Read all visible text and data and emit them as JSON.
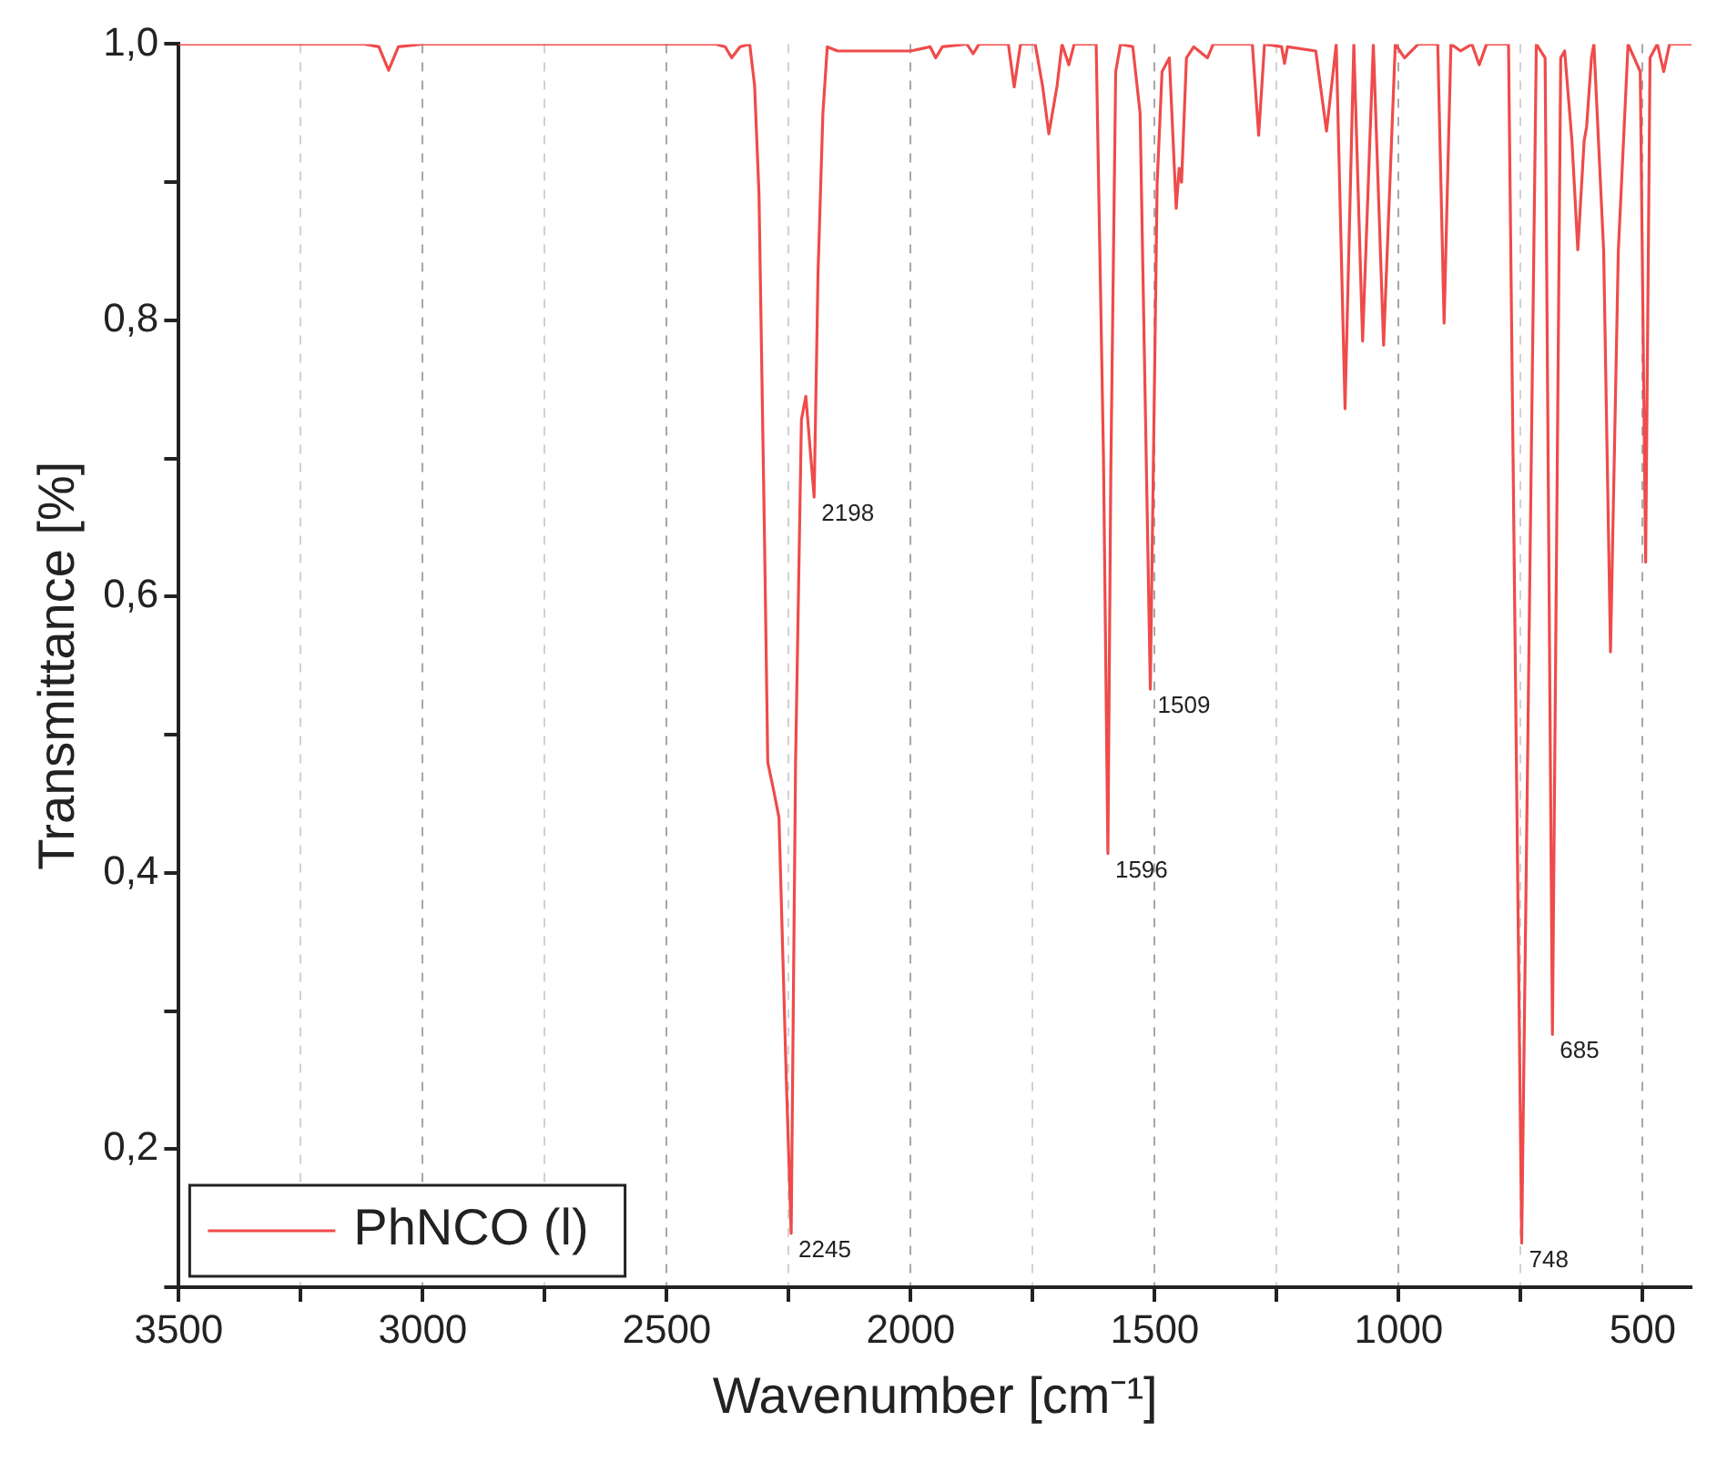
{
  "chart_data": {
    "type": "line",
    "xlabel": "Wavenumber [cm⁻¹]",
    "ylabel": "Transmittance [%]",
    "xlim": [
      3500,
      400
    ],
    "xticks": [
      3500,
      {
        "value": 3250,
        "label": null
      },
      3000,
      {
        "value": 2750,
        "label": null
      },
      2500,
      {
        "value": 2250,
        "label": null
      },
      2000,
      {
        "value": 1750,
        "label": null
      },
      1500,
      {
        "value": 1250,
        "label": null
      },
      1000,
      {
        "value": 750,
        "label": null
      },
      500
    ],
    "ylim": [
      0.1,
      1.0
    ],
    "yticks": [
      {
        "value": 0.1,
        "label": null
      },
      {
        "value": 0.2,
        "label": "0,2"
      },
      {
        "value": 0.3,
        "label": null
      },
      {
        "value": 0.4,
        "label": "0,4"
      },
      {
        "value": 0.5,
        "label": null
      },
      {
        "value": 0.6,
        "label": "0,6"
      },
      {
        "value": 0.7,
        "label": null
      },
      {
        "value": 0.8,
        "label": "0,8"
      },
      {
        "value": 0.9,
        "label": null
      },
      {
        "value": 1.0,
        "label": "1,0"
      }
    ],
    "grid": "x",
    "legend": "bottom left",
    "marker": "none",
    "line_style": "solid",
    "series": [
      {
        "name": "PhNCO (l)",
        "color": "#ef4b4b",
        "x": [
          3500,
          3120,
          3090,
          3070,
          3050,
          3000,
          2400,
          2380,
          2367,
          2350,
          2330,
          2320,
          2311,
          2300,
          2293,
          2280,
          2270,
          2255,
          2245,
          2236,
          2224,
          2215,
          2198,
          2190,
          2180,
          2171,
          2150,
          2000,
          1960,
          1949,
          1935,
          1885,
          1872,
          1860,
          1800,
          1788,
          1775,
          1745,
          1730,
          1717,
          1700,
          1690,
          1676,
          1665,
          1620,
          1605,
          1596,
          1590,
          1580,
          1570,
          1545,
          1530,
          1509,
          1495,
          1485,
          1470,
          1456,
          1450,
          1445,
          1435,
          1420,
          1392,
          1380,
          1300,
          1287,
          1275,
          1240,
          1234,
          1228,
          1170,
          1148,
          1128,
          1110,
          1092,
          1074,
          1052,
          1031,
          1007,
          988,
          960,
          920,
          907,
          893,
          873,
          850,
          835,
          820,
          775,
          748,
          718,
          700,
          685,
          668,
          660,
          645,
          633,
          620,
          615,
          605,
          600,
          580,
          566,
          550,
          530,
          505,
          494,
          485,
          470,
          457,
          445,
          400
        ],
        "values": [
          1.0,
          1.0,
          0.998,
          0.981,
          0.998,
          1.0,
          1.0,
          0.998,
          0.99,
          0.998,
          1.0,
          0.97,
          0.892,
          0.65,
          0.48,
          0.458,
          0.44,
          0.25,
          0.139,
          0.48,
          0.728,
          0.745,
          0.672,
          0.834,
          0.95,
          0.998,
          0.995,
          0.995,
          0.998,
          0.99,
          0.998,
          1.0,
          0.993,
          1.0,
          1.0,
          0.969,
          1.0,
          1.0,
          0.97,
          0.935,
          0.97,
          1.0,
          0.985,
          1.0,
          1.0,
          0.7,
          0.414,
          0.69,
          0.98,
          1.0,
          0.998,
          0.95,
          0.533,
          0.9,
          0.98,
          0.99,
          0.881,
          0.91,
          0.9,
          0.99,
          0.998,
          0.99,
          1.0,
          1.0,
          0.934,
          1.0,
          0.998,
          0.986,
          0.998,
          0.995,
          0.937,
          1.0,
          0.736,
          1.0,
          0.785,
          1.0,
          0.782,
          1.0,
          0.99,
          1.0,
          1.0,
          0.798,
          1.0,
          0.995,
          1.0,
          0.985,
          1.0,
          1.0,
          0.132,
          1.0,
          0.99,
          0.283,
          0.99,
          0.995,
          0.93,
          0.851,
          0.93,
          0.94,
          0.99,
          1.0,
          0.85,
          0.56,
          0.85,
          1.0,
          0.98,
          0.625,
          0.99,
          1.0,
          0.98,
          1.0,
          1.0
        ]
      }
    ],
    "annotations": [
      {
        "text": "2245",
        "x": 2245,
        "y": 0.139
      },
      {
        "text": "2198",
        "x": 2198,
        "y": 0.672
      },
      {
        "text": "1596",
        "x": 1596,
        "y": 0.414
      },
      {
        "text": "1509",
        "x": 1509,
        "y": 0.533
      },
      {
        "text": "748",
        "x": 748,
        "y": 0.132
      },
      {
        "text": "685",
        "x": 685,
        "y": 0.283
      }
    ]
  }
}
